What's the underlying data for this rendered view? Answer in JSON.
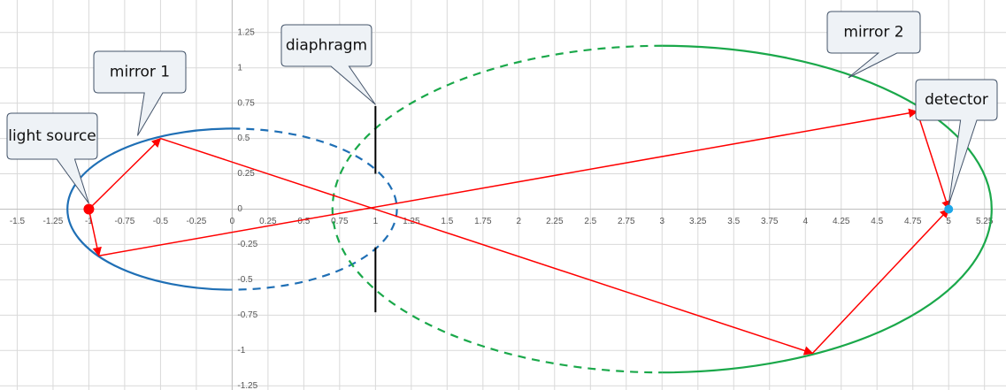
{
  "chart_data": {
    "type": "line",
    "xlim": [
      -1.62,
      5.4
    ],
    "ylim": [
      -1.28,
      1.48
    ],
    "xticks": [
      -1.5,
      -1.25,
      -1,
      -0.75,
      -0.5,
      -0.25,
      0,
      0.25,
      0.5,
      0.75,
      1,
      1.25,
      1.5,
      1.75,
      2,
      2.25,
      2.5,
      2.75,
      3,
      3.25,
      3.5,
      3.75,
      4,
      4.25,
      4.5,
      4.75,
      5,
      5.25
    ],
    "yticks": [
      -1.25,
      -1,
      -0.75,
      -0.5,
      -0.25,
      0,
      0.25,
      0.5,
      0.75,
      1,
      1.25
    ],
    "grid": true,
    "series": [
      {
        "color": "#ff0000",
        "x": [
          -1,
          -0.5,
          4.05,
          5
        ],
        "y": [
          0,
          0.5,
          -1.02,
          0
        ]
      },
      {
        "color": "#ff0000",
        "x": [
          -1,
          -0.93,
          4.78,
          5
        ],
        "y": [
          0,
          -0.33,
          0.69,
          0
        ]
      }
    ],
    "ellipses": [
      {
        "color": "#1f6fb5",
        "cx": 0,
        "cy": 0,
        "rx": 1.15,
        "ry": 0.57
      },
      {
        "color": "#1aa84a",
        "cx": 3,
        "cy": 0,
        "rx": 2.3,
        "ry": 1.156
      }
    ],
    "points": [
      {
        "color": "#ff0000",
        "x": -1,
        "y": 0
      },
      {
        "color": "#1ea7e8",
        "x": 5,
        "y": 0
      }
    ],
    "segments": [
      {
        "color": "#000000",
        "x": [
          1,
          1
        ],
        "y": [
          0.73,
          0.25
        ]
      },
      {
        "color": "#000000",
        "x": [
          1,
          1
        ],
        "y": [
          -0.27,
          -0.73
        ]
      }
    ],
    "callouts": [
      {
        "label": "light source",
        "x": -1,
        "y": 0.04
      },
      {
        "label": "mirror 1",
        "x": -0.66,
        "y": 0.52
      },
      {
        "label": "diaphragm",
        "x": 1,
        "y": 0.74
      },
      {
        "label": "mirror 2",
        "x": 4.3,
        "y": 0.93
      },
      {
        "label": "detector",
        "x": 5,
        "y": 0.03
      }
    ]
  }
}
